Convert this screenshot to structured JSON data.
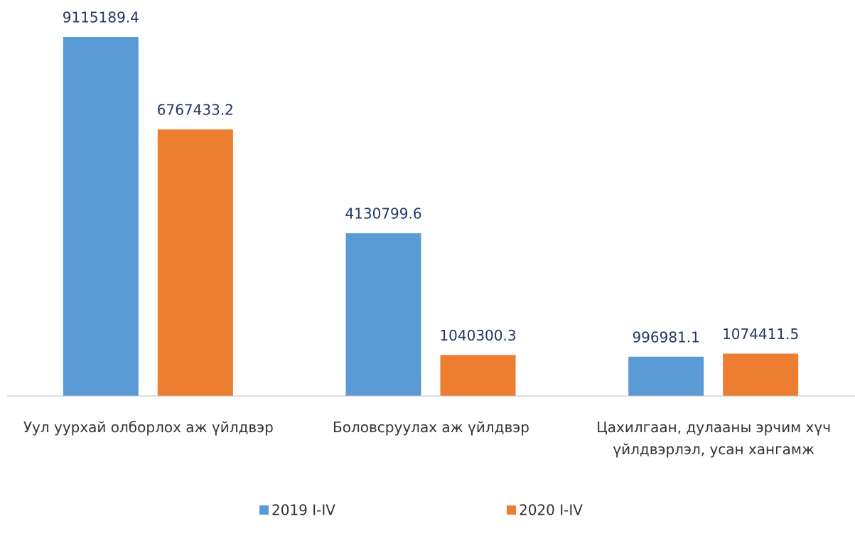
{
  "chart_data": {
    "type": "bar",
    "categories": [
      "Уул уурхай олборлох аж үйлдвэр",
      "Боловсруулах аж үйлдвэр",
      "Цахилгаан, дулааны эрчим хүч үйлдвэрлэл, усан хангамж"
    ],
    "series": [
      {
        "name": "2019 I-IV",
        "color": "#5b9bd5",
        "values": [
          9115189.4,
          4130799.6,
          996981.1
        ]
      },
      {
        "name": "2020 I-IV",
        "color": "#ed7d31",
        "values": [
          6767433.2,
          1040300.3,
          1074411.5
        ]
      }
    ],
    "ylim": [
      0,
      10000000
    ],
    "legend": "bottom"
  }
}
